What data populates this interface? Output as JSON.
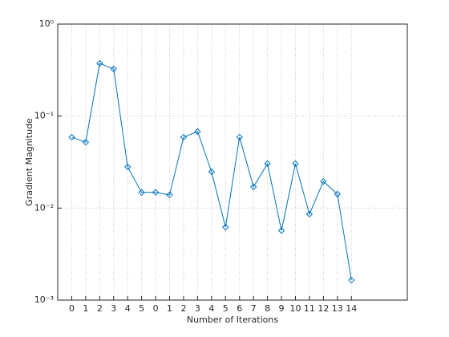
{
  "chart_data": {
    "type": "line",
    "xlabel": "Number of Iterations",
    "ylabel": "Gradient Magnitude",
    "x": [
      1,
      2,
      3,
      4,
      5,
      6,
      7,
      8,
      9,
      10,
      11,
      12,
      13,
      14,
      15,
      16,
      17,
      18,
      19,
      20,
      21
    ],
    "series": [
      {
        "color": "#0072bd",
        "values": [
          0.059,
          0.052,
          0.374,
          0.325,
          0.028,
          0.0148,
          0.0148,
          0.0139,
          0.059,
          0.068,
          0.0248,
          0.0062,
          0.059,
          0.017,
          0.0304,
          0.0057,
          0.0304,
          0.0086,
          0.0195,
          0.0142,
          0.00165
        ]
      }
    ],
    "xlim": [
      0,
      25
    ],
    "xticks": [
      {
        "value": 1,
        "label": "0"
      },
      {
        "value": 2,
        "label": "1"
      },
      {
        "value": 3,
        "label": "2"
      },
      {
        "value": 4,
        "label": "3"
      },
      {
        "value": 5,
        "label": "4"
      },
      {
        "value": 6,
        "label": "5"
      },
      {
        "value": 7,
        "label": "0"
      },
      {
        "value": 8,
        "label": "1"
      },
      {
        "value": 9,
        "label": "2"
      },
      {
        "value": 10,
        "label": "3"
      },
      {
        "value": 11,
        "label": "4"
      },
      {
        "value": 12,
        "label": "5"
      },
      {
        "value": 13,
        "label": "6"
      },
      {
        "value": 14,
        "label": "7"
      },
      {
        "value": 15,
        "label": "8"
      },
      {
        "value": 16,
        "label": "9"
      },
      {
        "value": 17,
        "label": "10"
      },
      {
        "value": 18,
        "label": "11"
      },
      {
        "value": 19,
        "label": "12"
      },
      {
        "value": 20,
        "label": "13"
      },
      {
        "value": 21,
        "label": "14"
      }
    ],
    "ylim": [
      0.001,
      1
    ],
    "yticks": [
      {
        "value": 0.001,
        "label": "10⁻³"
      },
      {
        "value": 0.01,
        "label": "10⁻²"
      },
      {
        "value": 0.1,
        "label": "10⁻¹"
      },
      {
        "value": 1,
        "label": "10⁰"
      }
    ],
    "ylog": true,
    "grid": true
  }
}
